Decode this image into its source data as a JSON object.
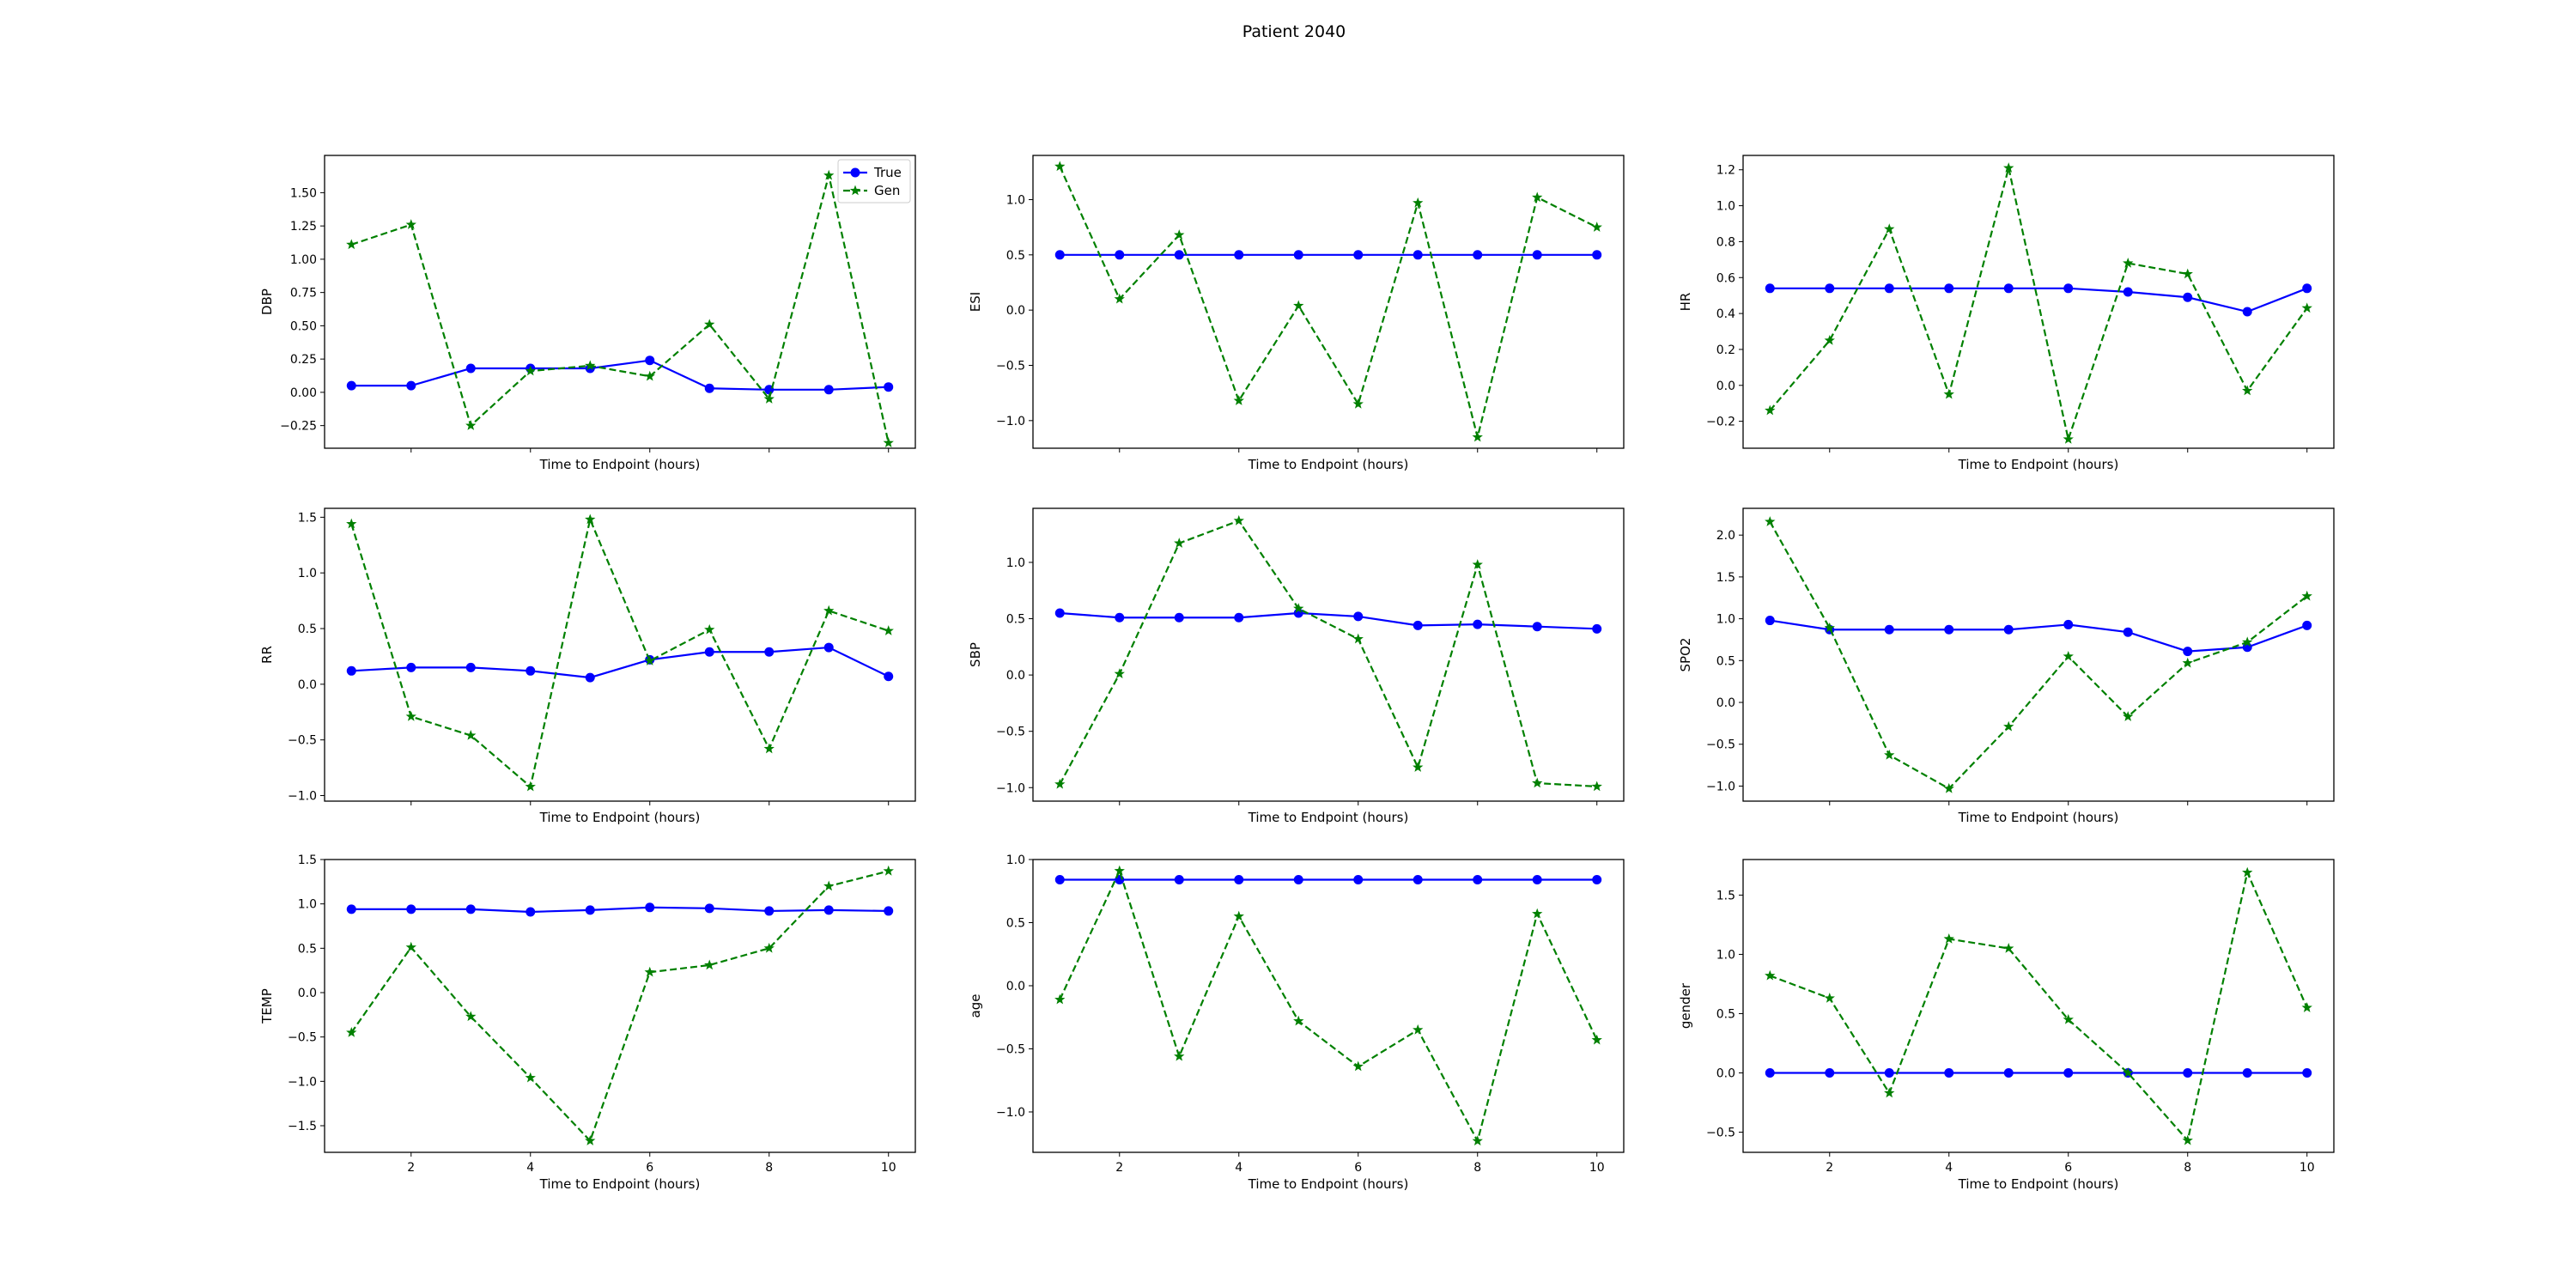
{
  "figure": {
    "title": "Patient 2040"
  },
  "colors": {
    "true_series": "#0000ff",
    "gen_series": "#008000",
    "axes": "#000000",
    "background": "#ffffff"
  },
  "legend": {
    "location": "upper right of first panel",
    "entries": [
      "True",
      "Gen"
    ]
  },
  "chart_data": [
    {
      "type": "line",
      "panel": "DBP",
      "ylabel": "DBP",
      "xlabel": "Time to Endpoint (hours)",
      "x": [
        1,
        2,
        3,
        4,
        5,
        6,
        7,
        8,
        9,
        10
      ],
      "xlim": [
        0.55,
        10.45
      ],
      "ylim": [
        -0.42,
        1.78
      ],
      "yticks": [
        -0.25,
        0.0,
        0.25,
        0.5,
        0.75,
        1.0,
        1.25,
        1.5
      ],
      "ytick_labels": [
        "−0.25",
        "0.00",
        "0.25",
        "0.50",
        "0.75",
        "1.00",
        "1.25",
        "1.50"
      ],
      "show_legend": true,
      "series": [
        {
          "name": "True",
          "style": "solid-circle",
          "values": [
            0.05,
            0.05,
            0.18,
            0.18,
            0.18,
            0.24,
            0.03,
            0.02,
            0.02,
            0.04
          ]
        },
        {
          "name": "Gen",
          "style": "dashed-star",
          "values": [
            1.11,
            1.26,
            -0.25,
            0.16,
            0.2,
            0.12,
            0.51,
            -0.05,
            1.63,
            -0.38
          ]
        }
      ]
    },
    {
      "type": "line",
      "panel": "ESI",
      "ylabel": "ESI",
      "xlabel": "Time to Endpoint (hours)",
      "x": [
        1,
        2,
        3,
        4,
        5,
        6,
        7,
        8,
        9,
        10
      ],
      "xlim": [
        0.55,
        10.45
      ],
      "ylim": [
        -1.25,
        1.4
      ],
      "yticks": [
        -1.0,
        -0.5,
        0.0,
        0.5,
        1.0
      ],
      "ytick_labels": [
        "−1.0",
        "−0.5",
        "0.0",
        "0.5",
        "1.0"
      ],
      "series": [
        {
          "name": "True",
          "style": "solid-circle",
          "values": [
            0.5,
            0.5,
            0.5,
            0.5,
            0.5,
            0.5,
            0.5,
            0.5,
            0.5,
            0.5
          ]
        },
        {
          "name": "Gen",
          "style": "dashed-star",
          "values": [
            1.3,
            0.1,
            0.68,
            -0.82,
            0.04,
            -0.85,
            0.97,
            -1.15,
            1.02,
            0.75
          ]
        }
      ]
    },
    {
      "type": "line",
      "panel": "HR",
      "ylabel": "HR",
      "xlabel": "Time to Endpoint (hours)",
      "x": [
        1,
        2,
        3,
        4,
        5,
        6,
        7,
        8,
        9,
        10
      ],
      "xlim": [
        0.55,
        10.45
      ],
      "ylim": [
        -0.35,
        1.28
      ],
      "yticks": [
        -0.2,
        0.0,
        0.2,
        0.4,
        0.6,
        0.8,
        1.0,
        1.2
      ],
      "ytick_labels": [
        "−0.2",
        "0.0",
        "0.2",
        "0.4",
        "0.6",
        "0.8",
        "1.0",
        "1.2"
      ],
      "series": [
        {
          "name": "True",
          "style": "solid-circle",
          "values": [
            0.54,
            0.54,
            0.54,
            0.54,
            0.54,
            0.54,
            0.52,
            0.49,
            0.41,
            0.54
          ]
        },
        {
          "name": "Gen",
          "style": "dashed-star",
          "values": [
            -0.14,
            0.25,
            0.87,
            -0.05,
            1.21,
            -0.3,
            0.68,
            0.62,
            -0.03,
            0.43
          ]
        }
      ]
    },
    {
      "type": "line",
      "panel": "RR",
      "ylabel": "RR",
      "xlabel": "Time to Endpoint (hours)",
      "x": [
        1,
        2,
        3,
        4,
        5,
        6,
        7,
        8,
        9,
        10
      ],
      "xlim": [
        0.55,
        10.45
      ],
      "ylim": [
        -1.05,
        1.58
      ],
      "yticks": [
        -1.0,
        -0.5,
        0.0,
        0.5,
        1.0,
        1.5
      ],
      "ytick_labels": [
        "−1.0",
        "−0.5",
        "0.0",
        "0.5",
        "1.0",
        "1.5"
      ],
      "series": [
        {
          "name": "True",
          "style": "solid-circle",
          "values": [
            0.12,
            0.15,
            0.15,
            0.12,
            0.06,
            0.22,
            0.29,
            0.29,
            0.33,
            0.07
          ]
        },
        {
          "name": "Gen",
          "style": "dashed-star",
          "values": [
            1.44,
            -0.29,
            -0.46,
            -0.92,
            1.48,
            0.21,
            0.49,
            -0.58,
            0.66,
            0.48
          ]
        }
      ]
    },
    {
      "type": "line",
      "panel": "SBP",
      "ylabel": "SBP",
      "xlabel": "Time to Endpoint (hours)",
      "x": [
        1,
        2,
        3,
        4,
        5,
        6,
        7,
        8,
        9,
        10
      ],
      "xlim": [
        0.55,
        10.45
      ],
      "ylim": [
        -1.12,
        1.48
      ],
      "yticks": [
        -1.0,
        -0.5,
        0.0,
        0.5,
        1.0
      ],
      "ytick_labels": [
        "−1.0",
        "−0.5",
        "0.0",
        "0.5",
        "1.0"
      ],
      "series": [
        {
          "name": "True",
          "style": "solid-circle",
          "values": [
            0.55,
            0.51,
            0.51,
            0.51,
            0.55,
            0.52,
            0.44,
            0.45,
            0.43,
            0.41
          ]
        },
        {
          "name": "Gen",
          "style": "dashed-star",
          "values": [
            -0.97,
            0.01,
            1.17,
            1.37,
            0.59,
            0.32,
            -0.82,
            0.98,
            -0.96,
            -0.99
          ]
        }
      ]
    },
    {
      "type": "line",
      "panel": "SPO2",
      "ylabel": "SPO2",
      "xlabel": "Time to Endpoint (hours)",
      "x": [
        1,
        2,
        3,
        4,
        5,
        6,
        7,
        8,
        9,
        10
      ],
      "xlim": [
        0.55,
        10.45
      ],
      "ylim": [
        -1.18,
        2.32
      ],
      "yticks": [
        -1.0,
        -0.5,
        0.0,
        0.5,
        1.0,
        1.5,
        2.0
      ],
      "ytick_labels": [
        "−1.0",
        "−0.5",
        "0.0",
        "0.5",
        "1.0",
        "1.5",
        "2.0"
      ],
      "series": [
        {
          "name": "True",
          "style": "solid-circle",
          "values": [
            0.98,
            0.87,
            0.87,
            0.87,
            0.87,
            0.93,
            0.84,
            0.61,
            0.66,
            0.92
          ]
        },
        {
          "name": "Gen",
          "style": "dashed-star",
          "values": [
            2.16,
            0.89,
            -0.63,
            -1.03,
            -0.29,
            0.55,
            -0.17,
            0.47,
            0.72,
            1.27
          ]
        }
      ]
    },
    {
      "type": "line",
      "panel": "TEMP",
      "ylabel": "TEMP",
      "xlabel": "Time to Endpoint (hours)",
      "x": [
        1,
        2,
        3,
        4,
        5,
        6,
        7,
        8,
        9,
        10
      ],
      "xlim": [
        0.55,
        10.45
      ],
      "ylim": [
        -1.8,
        1.5
      ],
      "yticks": [
        -1.5,
        -1.0,
        -0.5,
        0.0,
        0.5,
        1.0,
        1.5
      ],
      "ytick_labels": [
        "−1.5",
        "−1.0",
        "−0.5",
        "0.0",
        "0.5",
        "1.0",
        "1.5"
      ],
      "xticks": [
        2,
        4,
        6,
        8,
        10
      ],
      "series": [
        {
          "name": "True",
          "style": "solid-circle",
          "values": [
            0.94,
            0.94,
            0.94,
            0.91,
            0.93,
            0.96,
            0.95,
            0.92,
            0.93,
            0.92
          ]
        },
        {
          "name": "Gen",
          "style": "dashed-star",
          "values": [
            -0.45,
            0.51,
            -0.27,
            -0.96,
            -1.67,
            0.23,
            0.31,
            0.5,
            1.2,
            1.37
          ]
        }
      ]
    },
    {
      "type": "line",
      "panel": "age",
      "ylabel": "age",
      "xlabel": "Time to Endpoint (hours)",
      "x": [
        1,
        2,
        3,
        4,
        5,
        6,
        7,
        8,
        9,
        10
      ],
      "xlim": [
        0.55,
        10.45
      ],
      "ylim": [
        -1.32,
        1.0
      ],
      "yticks": [
        -1.0,
        -0.5,
        0.0,
        0.5,
        1.0
      ],
      "ytick_labels": [
        "−1.0",
        "−0.5",
        "0.0",
        "0.5",
        "1.0"
      ],
      "xticks": [
        2,
        4,
        6,
        8,
        10
      ],
      "series": [
        {
          "name": "True",
          "style": "solid-circle",
          "values": [
            0.84,
            0.84,
            0.84,
            0.84,
            0.84,
            0.84,
            0.84,
            0.84,
            0.84,
            0.84
          ]
        },
        {
          "name": "Gen",
          "style": "dashed-star",
          "values": [
            -0.11,
            0.91,
            -0.56,
            0.55,
            -0.28,
            -0.64,
            -0.35,
            -1.23,
            0.57,
            -0.43
          ]
        }
      ]
    },
    {
      "type": "line",
      "panel": "gender",
      "ylabel": "gender",
      "xlabel": "Time to Endpoint (hours)",
      "x": [
        1,
        2,
        3,
        4,
        5,
        6,
        7,
        8,
        9,
        10
      ],
      "xlim": [
        0.55,
        10.45
      ],
      "ylim": [
        -0.67,
        1.8
      ],
      "yticks": [
        -0.5,
        0.0,
        0.5,
        1.0,
        1.5
      ],
      "ytick_labels": [
        "−0.5",
        "0.0",
        "0.5",
        "1.0",
        "1.5"
      ],
      "xticks": [
        2,
        4,
        6,
        8,
        10
      ],
      "series": [
        {
          "name": "True",
          "style": "solid-circle",
          "values": [
            0,
            0,
            0,
            0,
            0,
            0,
            0,
            0,
            0,
            0
          ]
        },
        {
          "name": "Gen",
          "style": "dashed-star",
          "values": [
            0.82,
            0.63,
            -0.17,
            1.13,
            1.05,
            0.45,
            0.0,
            -0.57,
            1.69,
            0.55
          ]
        }
      ]
    }
  ]
}
